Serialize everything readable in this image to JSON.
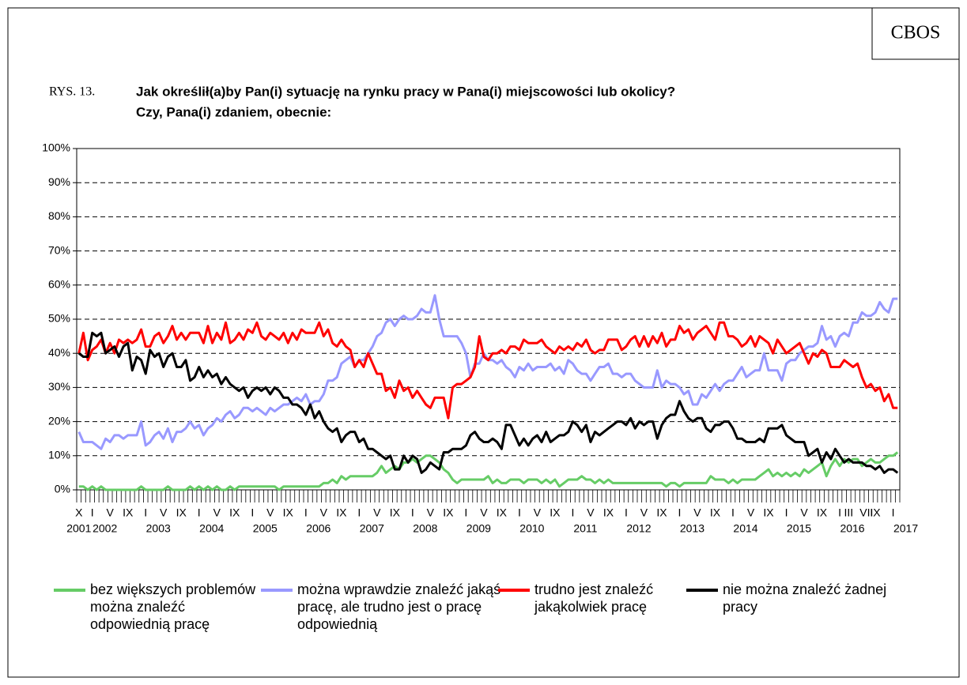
{
  "chart_data": {
    "type": "line",
    "source": "CBOS",
    "figure_label": "RYS. 13.",
    "title": "Jak określił(a)by Pan(i) sytuację na rynku pracy w Pana(i) miejscowości lub okolicy?",
    "subtitle": "Czy, Pana(i) zdaniem, obecnie:",
    "categories": [
      "X",
      null,
      null,
      "I",
      null,
      null,
      null,
      "V",
      null,
      null,
      null,
      "IX",
      null,
      null,
      null,
      "I",
      null,
      null,
      null,
      "V",
      null,
      null,
      null,
      "IX",
      null,
      null,
      null,
      "I",
      null,
      null,
      null,
      "V",
      null,
      null,
      null,
      "IX",
      null,
      null,
      null,
      "I",
      null,
      null,
      null,
      "V",
      null,
      null,
      null,
      "IX",
      null,
      null,
      null,
      "I",
      null,
      null,
      null,
      "V",
      null,
      null,
      null,
      "IX",
      null,
      null,
      null,
      "I",
      null,
      null,
      null,
      "V",
      null,
      null,
      null,
      "IX",
      null,
      null,
      null,
      "I",
      null,
      null,
      null,
      "V",
      null,
      null,
      null,
      "IX",
      null,
      null,
      null,
      "I",
      null,
      null,
      null,
      "V",
      null,
      null,
      null,
      "IX",
      null,
      null,
      null,
      "I",
      null,
      null,
      null,
      "V",
      null,
      null,
      null,
      "IX",
      null,
      null,
      null,
      "I",
      null,
      null,
      null,
      "V",
      null,
      null,
      null,
      "IX",
      null,
      null,
      null,
      "I",
      null,
      null,
      null,
      "V",
      null,
      null,
      null,
      "IX",
      null,
      null,
      null,
      "I",
      null,
      null,
      null,
      "V",
      null,
      null,
      null,
      "IX",
      null,
      null,
      null,
      "I",
      null,
      null,
      null,
      "V",
      null,
      null,
      null,
      "IX",
      null,
      null,
      null,
      "I",
      null,
      null,
      null,
      "V",
      null,
      null,
      null,
      "IX",
      null,
      null,
      null,
      "I",
      null,
      "III",
      null,
      null,
      null,
      "VII",
      null,
      "IX",
      null,
      null,
      null,
      "I",
      null
    ],
    "years": [
      "2001",
      null,
      null,
      "2002",
      null,
      null,
      null,
      null,
      null,
      null,
      null,
      null,
      null,
      null,
      null,
      "2003",
      null,
      null,
      null,
      null,
      null,
      null,
      null,
      null,
      null,
      null,
      null,
      "2004",
      null,
      null,
      null,
      null,
      null,
      null,
      null,
      null,
      null,
      null,
      null,
      "2005",
      null,
      null,
      null,
      null,
      null,
      null,
      null,
      null,
      null,
      null,
      null,
      "2006",
      null,
      null,
      null,
      null,
      null,
      null,
      null,
      null,
      null,
      null,
      null,
      "2007",
      null,
      null,
      null,
      null,
      null,
      null,
      null,
      null,
      null,
      null,
      null,
      "2008",
      null,
      null,
      null,
      null,
      null,
      null,
      null,
      null,
      null,
      null,
      null,
      "2009",
      null,
      null,
      null,
      null,
      null,
      null,
      null,
      null,
      null,
      null,
      null,
      "2010",
      null,
      null,
      null,
      null,
      null,
      null,
      null,
      null,
      null,
      null,
      null,
      "2011",
      null,
      null,
      null,
      null,
      null,
      null,
      null,
      null,
      null,
      null,
      null,
      "2012",
      null,
      null,
      null,
      null,
      null,
      null,
      null,
      null,
      null,
      null,
      null,
      "2013",
      null,
      null,
      null,
      null,
      null,
      null,
      null,
      null,
      null,
      null,
      null,
      "2014",
      null,
      null,
      null,
      null,
      null,
      null,
      null,
      null,
      null,
      null,
      null,
      "2015",
      null,
      null,
      null,
      null,
      null,
      null,
      null,
      null,
      null,
      null,
      null,
      "2016",
      null,
      null,
      null,
      null,
      null,
      null,
      null,
      null,
      null,
      null,
      null,
      "2017",
      null
    ],
    "series": [
      {
        "name": "bez większych problemów można znaleźć odpowiednią pracę",
        "color": "#66cc66",
        "values": [
          1,
          1,
          0,
          1,
          0,
          1,
          0,
          0,
          0,
          0,
          0,
          0,
          0,
          0,
          1,
          0,
          0,
          0,
          0,
          0,
          1,
          0,
          0,
          0,
          0,
          1,
          0,
          1,
          0,
          1,
          0,
          1,
          0,
          0,
          1,
          0,
          1,
          1,
          1,
          1,
          1,
          1,
          1,
          1,
          1,
          0,
          1,
          1,
          1,
          1,
          1,
          1,
          1,
          1,
          1,
          2,
          2,
          3,
          2,
          4,
          3,
          4,
          4,
          4,
          4,
          4,
          4,
          5,
          7,
          5,
          6,
          7,
          6,
          8,
          8,
          9,
          8,
          9,
          10,
          10,
          9,
          8,
          6,
          5,
          3,
          2,
          3,
          3,
          3,
          3,
          3,
          3,
          4,
          2,
          3,
          2,
          2,
          3,
          3,
          3,
          2,
          3,
          3,
          3,
          2,
          3,
          2,
          3,
          1,
          2,
          3,
          3,
          3,
          4,
          3,
          3,
          2,
          3,
          2,
          3,
          2,
          2,
          2,
          2,
          2,
          2,
          2,
          2,
          2,
          2,
          2,
          2,
          1,
          2,
          2,
          1,
          2,
          2,
          2,
          2,
          2,
          2,
          4,
          3,
          3,
          3,
          2,
          3,
          2,
          3,
          3,
          3,
          3,
          4,
          5,
          6,
          4,
          5,
          4,
          5,
          4,
          5,
          4,
          6,
          5,
          6,
          7,
          8,
          4,
          7,
          9,
          7,
          9,
          8,
          9,
          9,
          7,
          8,
          9,
          8,
          8,
          9,
          10,
          10,
          11
        ]
      },
      {
        "name": "można wprawdzie znaleźć jakąś pracę, ale trudno jest o pracę odpowiednią",
        "color": "#9999ff",
        "values": [
          17,
          14,
          14,
          14,
          13,
          12,
          15,
          14,
          16,
          16,
          15,
          16,
          16,
          16,
          20,
          13,
          14,
          16,
          17,
          15,
          18,
          14,
          17,
          17,
          18,
          20,
          18,
          19,
          16,
          18,
          19,
          21,
          20,
          22,
          23,
          21,
          22,
          24,
          24,
          23,
          24,
          23,
          22,
          24,
          23,
          24,
          25,
          25,
          26,
          27,
          26,
          28,
          25,
          26,
          26,
          28,
          32,
          32,
          33,
          37,
          38,
          39,
          36,
          38,
          38,
          40,
          42,
          45,
          46,
          49,
          50,
          48,
          50,
          51,
          50,
          50,
          51,
          53,
          52,
          52,
          57,
          50,
          45,
          45,
          45,
          45,
          43,
          40,
          33,
          37,
          37,
          40,
          38,
          38,
          37,
          38,
          36,
          35,
          33,
          36,
          35,
          37,
          35,
          36,
          36,
          36,
          37,
          35,
          36,
          34,
          38,
          37,
          35,
          34,
          34,
          32,
          34,
          36,
          36,
          37,
          34,
          34,
          33,
          34,
          34,
          32,
          31,
          30,
          30,
          30,
          35,
          30,
          32,
          31,
          31,
          30,
          28,
          29,
          25,
          25,
          28,
          27,
          29,
          31,
          29,
          31,
          32,
          32,
          34,
          36,
          33,
          34,
          35,
          35,
          40,
          35,
          35,
          35,
          32,
          37,
          38,
          38,
          40,
          41,
          42,
          42,
          43,
          48,
          44,
          45,
          42,
          45,
          46,
          45,
          49,
          49,
          52,
          51,
          51,
          52,
          55,
          53,
          52,
          56,
          56
        ]
      },
      {
        "name": "trudno jest znaleźć jakąkolwiek pracę",
        "color": "#ff0000",
        "values": [
          40,
          46,
          38,
          41,
          42,
          44,
          40,
          43,
          40,
          44,
          43,
          44,
          43,
          44,
          47,
          42,
          42,
          45,
          46,
          43,
          45,
          48,
          44,
          46,
          44,
          46,
          46,
          46,
          43,
          48,
          43,
          46,
          44,
          49,
          43,
          44,
          46,
          44,
          47,
          46,
          49,
          45,
          44,
          46,
          45,
          44,
          46,
          43,
          46,
          44,
          47,
          46,
          46,
          46,
          49,
          45,
          47,
          43,
          42,
          44,
          42,
          41,
          36,
          38,
          36,
          40,
          37,
          34,
          34,
          29,
          30,
          27,
          32,
          29,
          30,
          27,
          29,
          27,
          25,
          24,
          27,
          27,
          27,
          21,
          30,
          31,
          31,
          32,
          33,
          36,
          45,
          39,
          38,
          40,
          40,
          41,
          40,
          42,
          42,
          41,
          44,
          43,
          43,
          43,
          44,
          42,
          41,
          40,
          42,
          41,
          42,
          41,
          43,
          42,
          44,
          41,
          40,
          41,
          41,
          44,
          44,
          44,
          41,
          42,
          44,
          45,
          42,
          45,
          42,
          45,
          43,
          46,
          42,
          44,
          44,
          48,
          46,
          47,
          44,
          46,
          47,
          48,
          46,
          44,
          49,
          49,
          45,
          45,
          44,
          42,
          43,
          45,
          42,
          45,
          44,
          43,
          40,
          44,
          42,
          40,
          41,
          42,
          43,
          40,
          37,
          40,
          39,
          41,
          40,
          36,
          36,
          36,
          38,
          37,
          36,
          37,
          33,
          30,
          31,
          29,
          30,
          26,
          28,
          24,
          24
        ]
      },
      {
        "name": "nie można znaleźć żadnej pracy",
        "color": "#000000",
        "values": [
          40,
          39,
          39,
          46,
          45,
          46,
          40,
          41,
          42,
          39,
          42,
          43,
          35,
          39,
          38,
          34,
          41,
          39,
          40,
          36,
          39,
          40,
          36,
          36,
          38,
          32,
          33,
          36,
          33,
          35,
          33,
          34,
          31,
          33,
          31,
          30,
          29,
          30,
          27,
          29,
          30,
          29,
          30,
          28,
          30,
          29,
          27,
          27,
          25,
          25,
          24,
          22,
          25,
          21,
          23,
          20,
          18,
          17,
          18,
          14,
          16,
          17,
          17,
          14,
          15,
          12,
          12,
          11,
          10,
          9,
          10,
          6,
          6,
          10,
          8,
          10,
          9,
          5,
          6,
          8,
          7,
          6,
          11,
          11,
          12,
          12,
          12,
          13,
          16,
          17,
          15,
          14,
          14,
          15,
          14,
          12,
          19,
          19,
          16,
          13,
          15,
          13,
          15,
          16,
          14,
          17,
          14,
          15,
          16,
          16,
          17,
          20,
          19,
          17,
          19,
          14,
          17,
          16,
          17,
          18,
          19,
          20,
          20,
          19,
          21,
          18,
          20,
          19,
          20,
          20,
          15,
          19,
          21,
          22,
          22,
          26,
          23,
          21,
          20,
          21,
          21,
          18,
          17,
          19,
          19,
          20,
          20,
          18,
          15,
          15,
          14,
          14,
          14,
          15,
          14,
          18,
          18,
          18,
          19,
          16,
          15,
          14,
          14,
          14,
          10,
          11,
          12,
          8,
          11,
          9,
          12,
          10,
          8,
          9,
          8,
          8,
          8,
          7,
          7,
          6,
          7,
          5,
          6,
          6,
          5
        ]
      }
    ],
    "ylim": [
      0,
      100
    ],
    "yticks": [
      {
        "value": 0,
        "label": "0%"
      },
      {
        "value": 10,
        "label": "10%"
      },
      {
        "value": 20,
        "label": "20%"
      },
      {
        "value": 30,
        "label": "30%"
      },
      {
        "value": 40,
        "label": "40%"
      },
      {
        "value": 50,
        "label": "50%"
      },
      {
        "value": 60,
        "label": "60%"
      },
      {
        "value": 70,
        "label": "70%"
      },
      {
        "value": 80,
        "label": "80%"
      },
      {
        "value": 90,
        "label": "90%"
      },
      {
        "value": 100,
        "label": "100%"
      }
    ],
    "grid": true,
    "legend": "bottom"
  }
}
